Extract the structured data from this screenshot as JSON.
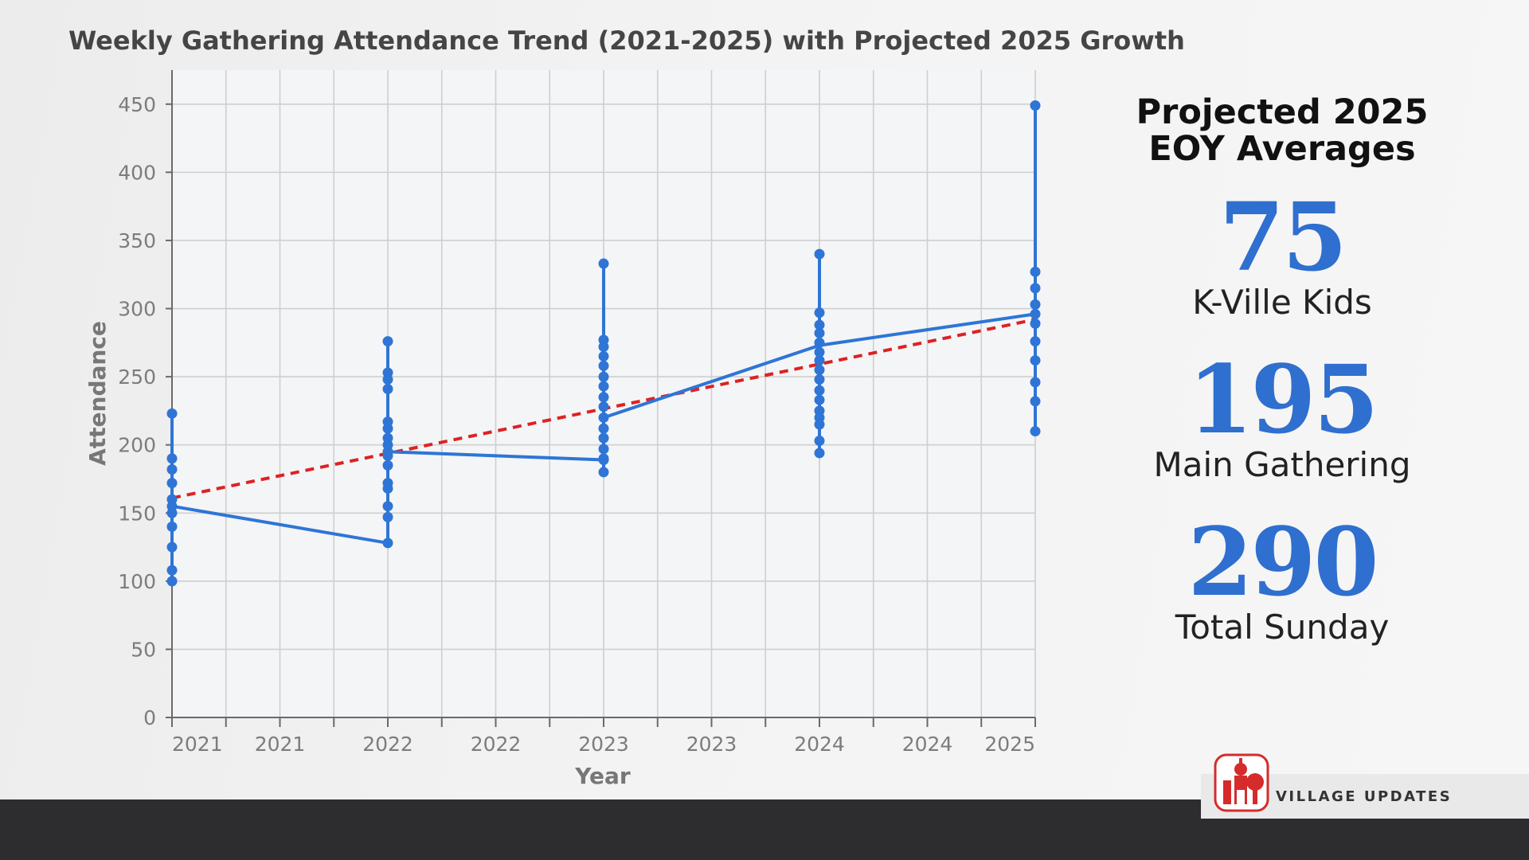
{
  "chart_data": {
    "type": "line",
    "title": "Weekly Gathering Attendance Trend (2021-2025) with Projected 2025 Growth",
    "xlabel": "Year",
    "ylabel": "Attendance",
    "xlim": [
      2021.0,
      2025.0
    ],
    "ylim": [
      0,
      475
    ],
    "yticks": [
      0,
      50,
      100,
      150,
      200,
      250,
      300,
      350,
      400,
      450
    ],
    "xtick_positions": [
      2021.0,
      2021.5,
      2022.0,
      2022.5,
      2023.0,
      2023.5,
      2024.0,
      2024.5,
      2025.0
    ],
    "xtick_labels": [
      "2021",
      "2021",
      "2022",
      "2022",
      "2023",
      "2023",
      "2024",
      "2024",
      "2025"
    ],
    "grid": true,
    "series": [
      {
        "color": "#2e75d6",
        "style": "solid",
        "markers": true,
        "points": [
          {
            "x": 2021,
            "y": 100
          },
          {
            "x": 2021,
            "y": 108
          },
          {
            "x": 2021,
            "y": 125
          },
          {
            "x": 2021,
            "y": 140
          },
          {
            "x": 2021,
            "y": 150
          },
          {
            "x": 2021,
            "y": 160
          },
          {
            "x": 2021,
            "y": 172
          },
          {
            "x": 2021,
            "y": 182
          },
          {
            "x": 2021,
            "y": 190
          },
          {
            "x": 2021,
            "y": 223
          },
          {
            "x": 2021,
            "y": 155
          },
          {
            "x": 2022,
            "y": 128
          },
          {
            "x": 2022,
            "y": 147
          },
          {
            "x": 2022,
            "y": 155
          },
          {
            "x": 2022,
            "y": 168
          },
          {
            "x": 2022,
            "y": 172
          },
          {
            "x": 2022,
            "y": 185
          },
          {
            "x": 2022,
            "y": 192
          },
          {
            "x": 2022,
            "y": 200
          },
          {
            "x": 2022,
            "y": 205
          },
          {
            "x": 2022,
            "y": 212
          },
          {
            "x": 2022,
            "y": 217
          },
          {
            "x": 2022,
            "y": 241
          },
          {
            "x": 2022,
            "y": 248
          },
          {
            "x": 2022,
            "y": 253
          },
          {
            "x": 2022,
            "y": 276
          },
          {
            "x": 2022,
            "y": 195
          },
          {
            "x": 2023,
            "y": 180
          },
          {
            "x": 2023,
            "y": 190
          },
          {
            "x": 2023,
            "y": 197
          },
          {
            "x": 2023,
            "y": 205
          },
          {
            "x": 2023,
            "y": 212
          },
          {
            "x": 2023,
            "y": 220
          },
          {
            "x": 2023,
            "y": 228
          },
          {
            "x": 2023,
            "y": 235
          },
          {
            "x": 2023,
            "y": 243
          },
          {
            "x": 2023,
            "y": 250
          },
          {
            "x": 2023,
            "y": 258
          },
          {
            "x": 2023,
            "y": 265
          },
          {
            "x": 2023,
            "y": 272
          },
          {
            "x": 2023,
            "y": 277
          },
          {
            "x": 2023,
            "y": 333
          },
          {
            "x": 2023,
            "y": 189
          },
          {
            "x": 2024,
            "y": 194
          },
          {
            "x": 2024,
            "y": 203
          },
          {
            "x": 2024,
            "y": 215
          },
          {
            "x": 2024,
            "y": 225
          },
          {
            "x": 2024,
            "y": 233
          },
          {
            "x": 2024,
            "y": 240
          },
          {
            "x": 2024,
            "y": 248
          },
          {
            "x": 2024,
            "y": 255
          },
          {
            "x": 2024,
            "y": 262
          },
          {
            "x": 2024,
            "y": 268
          },
          {
            "x": 2024,
            "y": 275
          },
          {
            "x": 2024,
            "y": 282
          },
          {
            "x": 2024,
            "y": 288
          },
          {
            "x": 2024,
            "y": 297
          },
          {
            "x": 2024,
            "y": 340
          },
          {
            "x": 2024,
            "y": 220
          },
          {
            "x": 2025,
            "y": 210
          },
          {
            "x": 2025,
            "y": 232
          },
          {
            "x": 2025,
            "y": 246
          },
          {
            "x": 2025,
            "y": 262
          },
          {
            "x": 2025,
            "y": 276
          },
          {
            "x": 2025,
            "y": 289
          },
          {
            "x": 2025,
            "y": 303
          },
          {
            "x": 2025,
            "y": 315
          },
          {
            "x": 2025,
            "y": 327
          },
          {
            "x": 2025,
            "y": 449
          },
          {
            "x": 2025,
            "y": 296
          }
        ],
        "connected_points": [
          {
            "x": 2021,
            "y": 155
          },
          {
            "x": 2022,
            "y": 128
          },
          {
            "x": 2022,
            "y": 195
          },
          {
            "x": 2023,
            "y": 189
          },
          {
            "x": 2023,
            "y": 220
          },
          {
            "x": 2024,
            "y": 273
          },
          {
            "x": 2025,
            "y": 296
          },
          {
            "x": 2025,
            "y": 449
          }
        ]
      },
      {
        "color": "#dd2222",
        "style": "dashed",
        "markers": false,
        "points": [
          {
            "x": 2021,
            "y": 161
          },
          {
            "x": 2025,
            "y": 292
          }
        ]
      }
    ]
  },
  "panel": {
    "heading_line1": "Projected 2025",
    "heading_line2": "EOY Averages",
    "stats": [
      {
        "value": "75",
        "label": "K-Ville Kids",
        "color": "#2f6fcf"
      },
      {
        "value": "195",
        "label": "Main Gathering",
        "color": "#2f6fcf"
      },
      {
        "value": "290",
        "label": "Total Sunday",
        "color": "#2f6fcf"
      }
    ]
  },
  "footer": {
    "brand_text": "VILLAGE UPDATES",
    "brand_color": "#d62b2b",
    "bar_color": "#2d2d2f"
  }
}
